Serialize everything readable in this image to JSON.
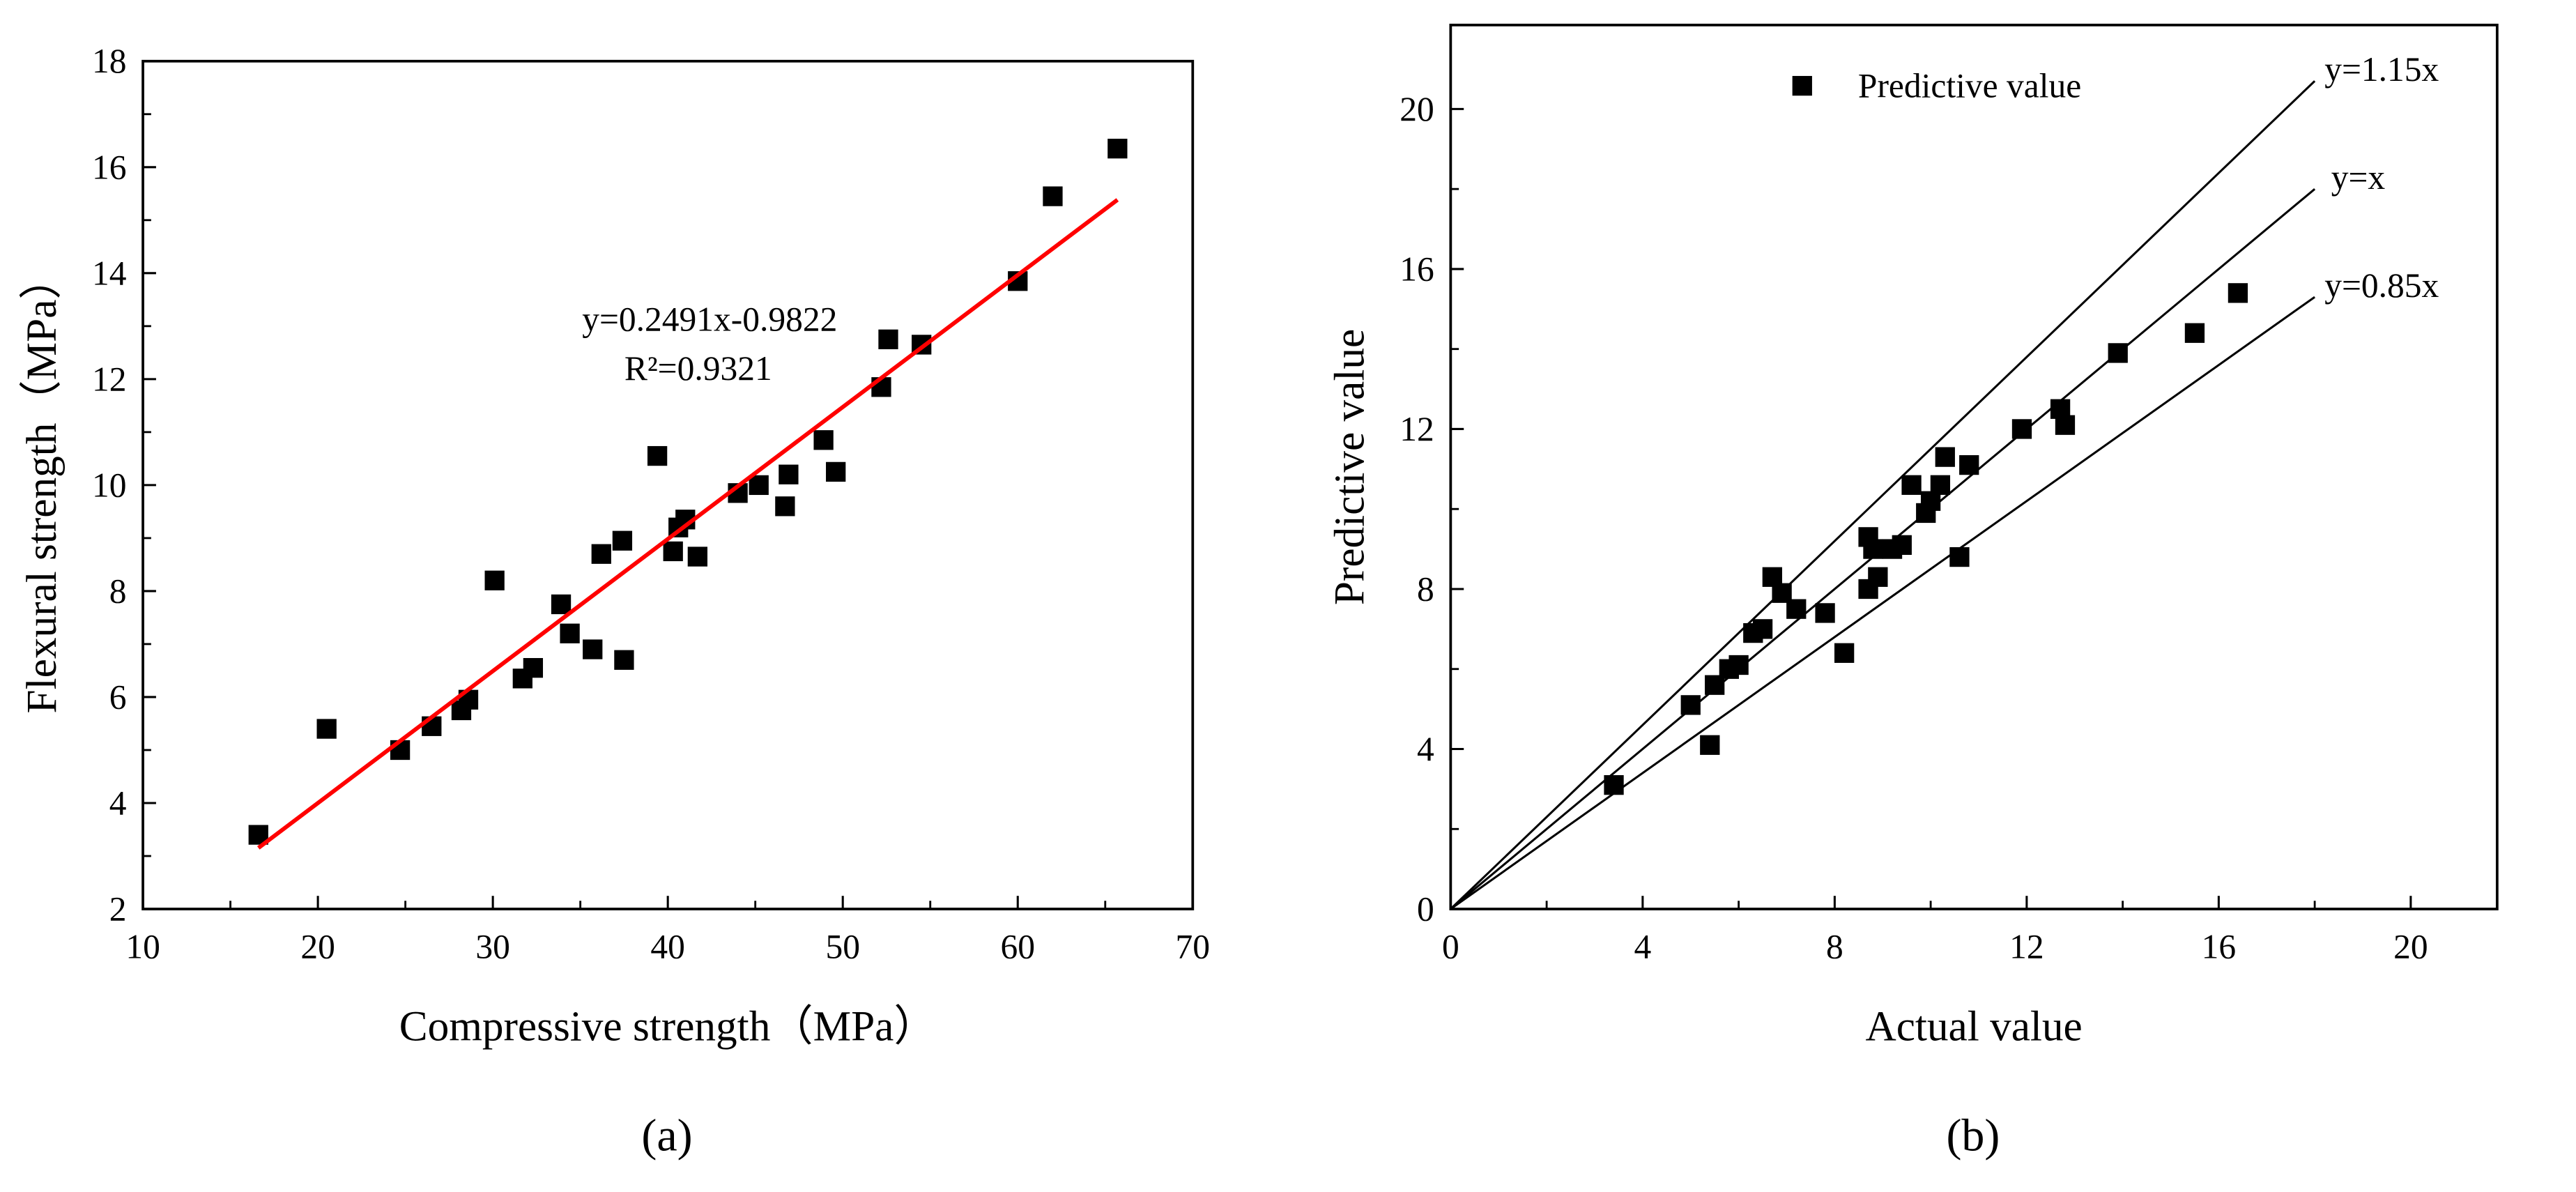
{
  "chart_data": [
    {
      "type": "scatter",
      "panel_label": "(a)",
      "panel_letter": "a",
      "xlabel": "Compressive strength（MPa）",
      "ylabel": "Flexural strength（MPa）",
      "xlim": [
        10,
        70
      ],
      "ylim": [
        2,
        18
      ],
      "xticks": [
        10,
        20,
        30,
        40,
        50,
        60,
        70
      ],
      "yticks": [
        2,
        4,
        6,
        8,
        10,
        12,
        14,
        16,
        18
      ],
      "grid": false,
      "series": [
        {
          "name": "data",
          "color": "#000000",
          "marker": "square",
          "x": [
            16.6,
            20.5,
            24.7,
            26.5,
            28.2,
            28.6,
            30.1,
            31.7,
            32.3,
            33.9,
            34.4,
            35.7,
            36.2,
            37.4,
            37.5,
            39.4,
            40.3,
            40.6,
            41.0,
            41.7,
            44.0,
            45.2,
            46.7,
            46.9,
            48.9,
            49.6,
            52.2,
            52.6,
            54.5,
            60.0,
            62.0,
            65.7
          ],
          "y": [
            3.4,
            5.4,
            5.0,
            5.45,
            5.75,
            5.95,
            8.2,
            6.35,
            6.55,
            7.75,
            7.2,
            6.9,
            8.7,
            8.95,
            6.7,
            10.55,
            8.75,
            9.2,
            9.35,
            8.65,
            9.85,
            10.0,
            9.6,
            10.2,
            10.85,
            10.25,
            11.85,
            12.75,
            12.65,
            13.85,
            15.45,
            16.35
          ]
        }
      ],
      "fit": {
        "slope": 0.2491,
        "intercept": -0.9822,
        "x_range": [
          16.6,
          65.7
        ],
        "color": "#ff0000",
        "equation": "y=0.2491x-0.9822",
        "r2": "R²=0.9321"
      }
    },
    {
      "type": "scatter",
      "panel_label": "(b)",
      "panel_letter": "b",
      "xlabel": "Actual value",
      "ylabel": "Predictive value",
      "xlim": [
        0,
        21.8
      ],
      "ylim": [
        0,
        22.1
      ],
      "xticks": [
        0,
        4,
        8,
        12,
        16,
        20
      ],
      "yticks": [
        0,
        4,
        8,
        12,
        16,
        20
      ],
      "grid": false,
      "legend": {
        "label": "Predictive value",
        "position": "top-center"
      },
      "series": [
        {
          "name": "Predictive value",
          "color": "#000000",
          "marker": "square",
          "x": [
            3.4,
            5.0,
            5.4,
            5.5,
            5.8,
            6.0,
            6.3,
            6.5,
            6.7,
            6.9,
            7.2,
            7.8,
            8.2,
            8.7,
            8.7,
            8.8,
            8.9,
            9.2,
            9.4,
            9.6,
            9.9,
            10.0,
            10.2,
            10.3,
            10.6,
            10.8,
            11.9,
            12.7,
            12.8,
            13.9,
            15.5,
            16.4
          ],
          "y": [
            3.1,
            5.1,
            4.1,
            5.6,
            6.0,
            6.1,
            6.9,
            7.0,
            8.3,
            7.9,
            7.5,
            7.4,
            6.4,
            9.3,
            8.0,
            9.0,
            8.3,
            9.0,
            9.1,
            10.6,
            9.9,
            10.2,
            10.6,
            11.3,
            8.8,
            11.1,
            12.0,
            12.5,
            12.1,
            13.9,
            14.4,
            15.4
          ]
        }
      ],
      "reference_lines": [
        {
          "slope": 1.15,
          "label": "y=1.15x",
          "x_end": 18
        },
        {
          "slope": 1.0,
          "label": "y=x",
          "x_end": 18
        },
        {
          "slope": 0.85,
          "label": "y=0.85x",
          "x_end": 18
        }
      ]
    }
  ]
}
